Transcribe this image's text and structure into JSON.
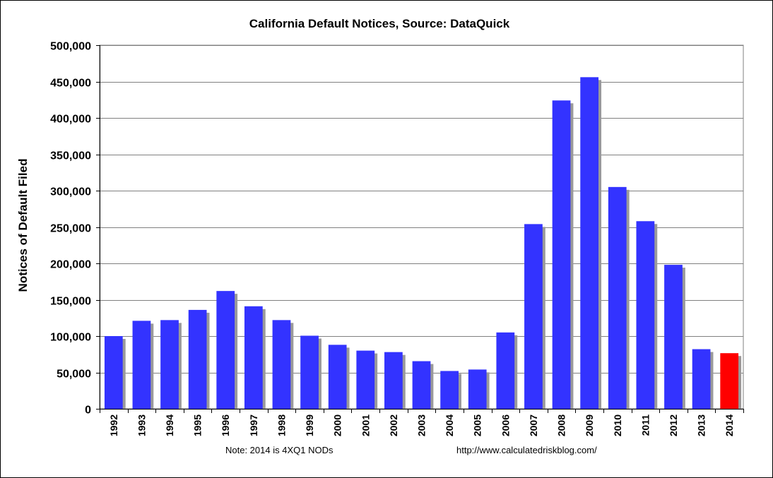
{
  "chart_data": {
    "type": "bar",
    "title": "California Default Notices, Source: DataQuick",
    "xlabel": "",
    "ylabel": "Notices of Default Filed",
    "ylim": [
      0,
      500000
    ],
    "yticks": [
      "0",
      "50,000",
      "100,000",
      "150,000",
      "200,000",
      "250,000",
      "300,000",
      "350,000",
      "400,000",
      "450,000",
      "500,000"
    ],
    "categories": [
      "1992",
      "1993",
      "1994",
      "1995",
      "1996",
      "1997",
      "1998",
      "1999",
      "2000",
      "2001",
      "2002",
      "2003",
      "2004",
      "2005",
      "2006",
      "2007",
      "2008",
      "2009",
      "2010",
      "2011",
      "2012",
      "2013",
      "2014"
    ],
    "values": [
      100000,
      121000,
      122000,
      136000,
      162000,
      141000,
      122000,
      100500,
      88000,
      80000,
      78000,
      65500,
      52000,
      54000,
      105000,
      254000,
      424000,
      456000,
      305000,
      258000,
      198000,
      82000,
      76500
    ],
    "bar_color": "#3333ff",
    "highlight_color": "#ff0000",
    "highlight_category": "2014",
    "grid": true,
    "plot_background": "#ffffff",
    "annotations": {
      "note": "Note: 2014 is 4XQ1 NODs",
      "source_url": "http://www.calculatedriskblog.com/"
    }
  }
}
